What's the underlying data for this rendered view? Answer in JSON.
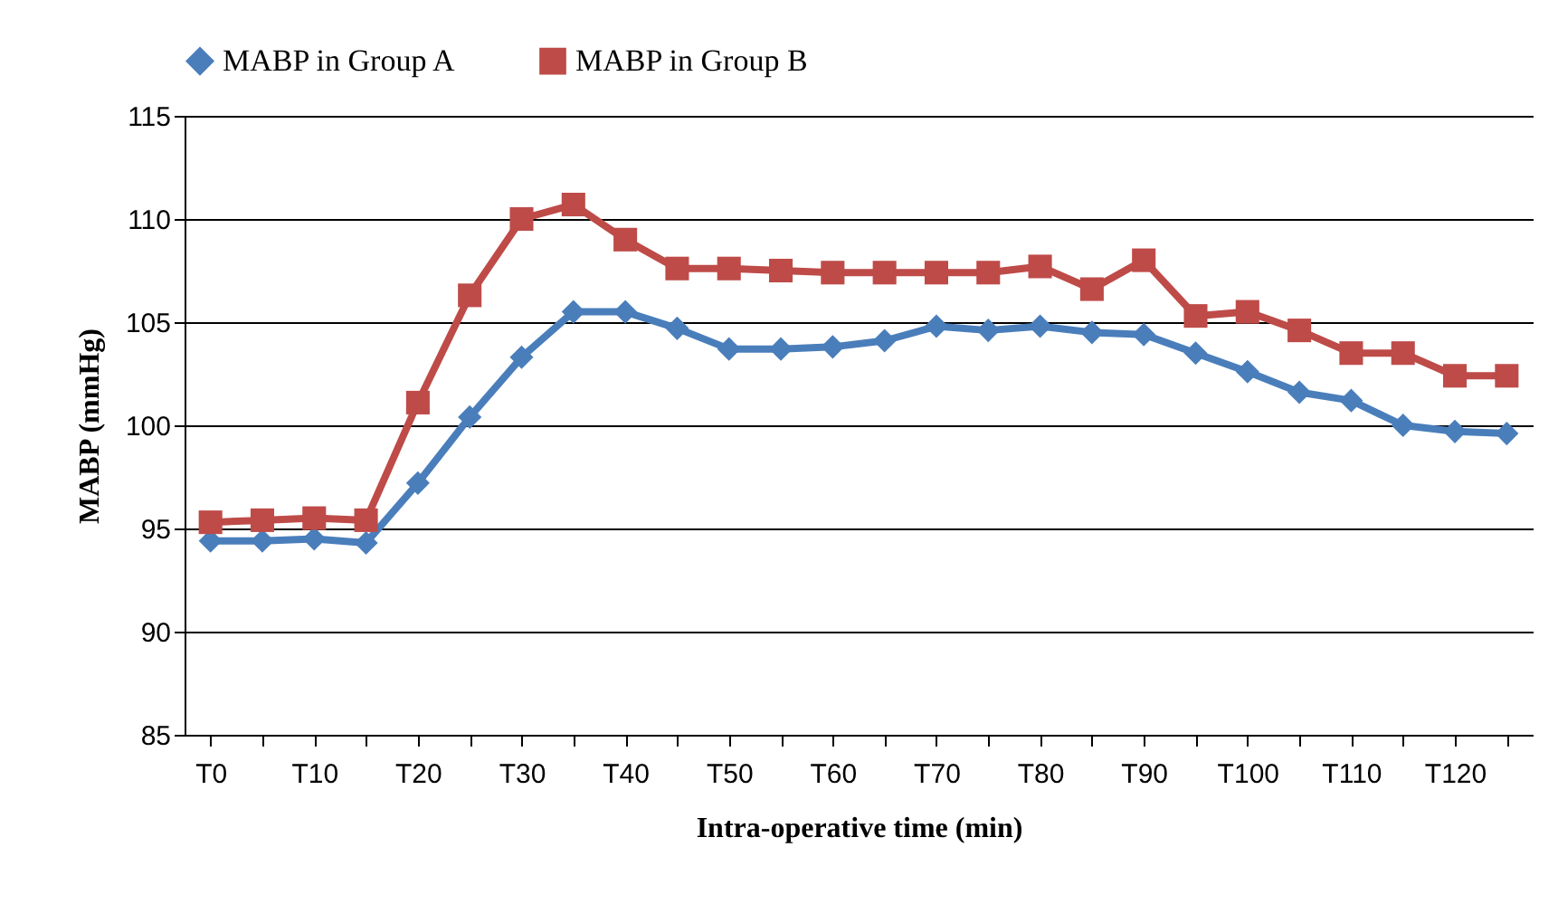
{
  "chart_data": {
    "type": "line",
    "xlabel": "Intra-operative time (min)",
    "ylabel": "MABP (mmHg)",
    "categories": [
      "T0",
      null,
      "T10",
      null,
      "T20",
      null,
      "T30",
      null,
      "T40",
      null,
      "T50",
      null,
      "T60",
      null,
      "T70",
      null,
      "T80",
      null,
      "T90",
      null,
      "T100",
      null,
      "T110",
      null,
      "T120",
      null
    ],
    "series": [
      {
        "name": "MABP in Group A",
        "color": "#4a7ebb",
        "marker": "diamond",
        "values": [
          94.4,
          94.4,
          94.5,
          94.3,
          97.2,
          100.4,
          103.3,
          105.5,
          105.5,
          104.7,
          103.7,
          103.7,
          103.8,
          104.1,
          104.8,
          104.6,
          104.8,
          104.5,
          104.4,
          103.5,
          102.6,
          101.6,
          101.2,
          100.0,
          99.7,
          99.6
        ]
      },
      {
        "name": "MABP in Group B",
        "color": "#be4b48",
        "marker": "square",
        "values": [
          95.3,
          95.4,
          95.5,
          95.4,
          101.1,
          106.3,
          110.0,
          110.7,
          109.0,
          107.6,
          107.6,
          107.5,
          107.4,
          107.4,
          107.4,
          107.4,
          107.7,
          106.6,
          108.0,
          105.3,
          105.5,
          104.6,
          103.5,
          103.5,
          102.4,
          102.4
        ]
      }
    ],
    "ylim": [
      85,
      115
    ],
    "yticks": [
      85,
      90,
      95,
      100,
      105,
      110,
      115
    ],
    "grid": "y",
    "legend": "top",
    "line_style": "solid"
  }
}
